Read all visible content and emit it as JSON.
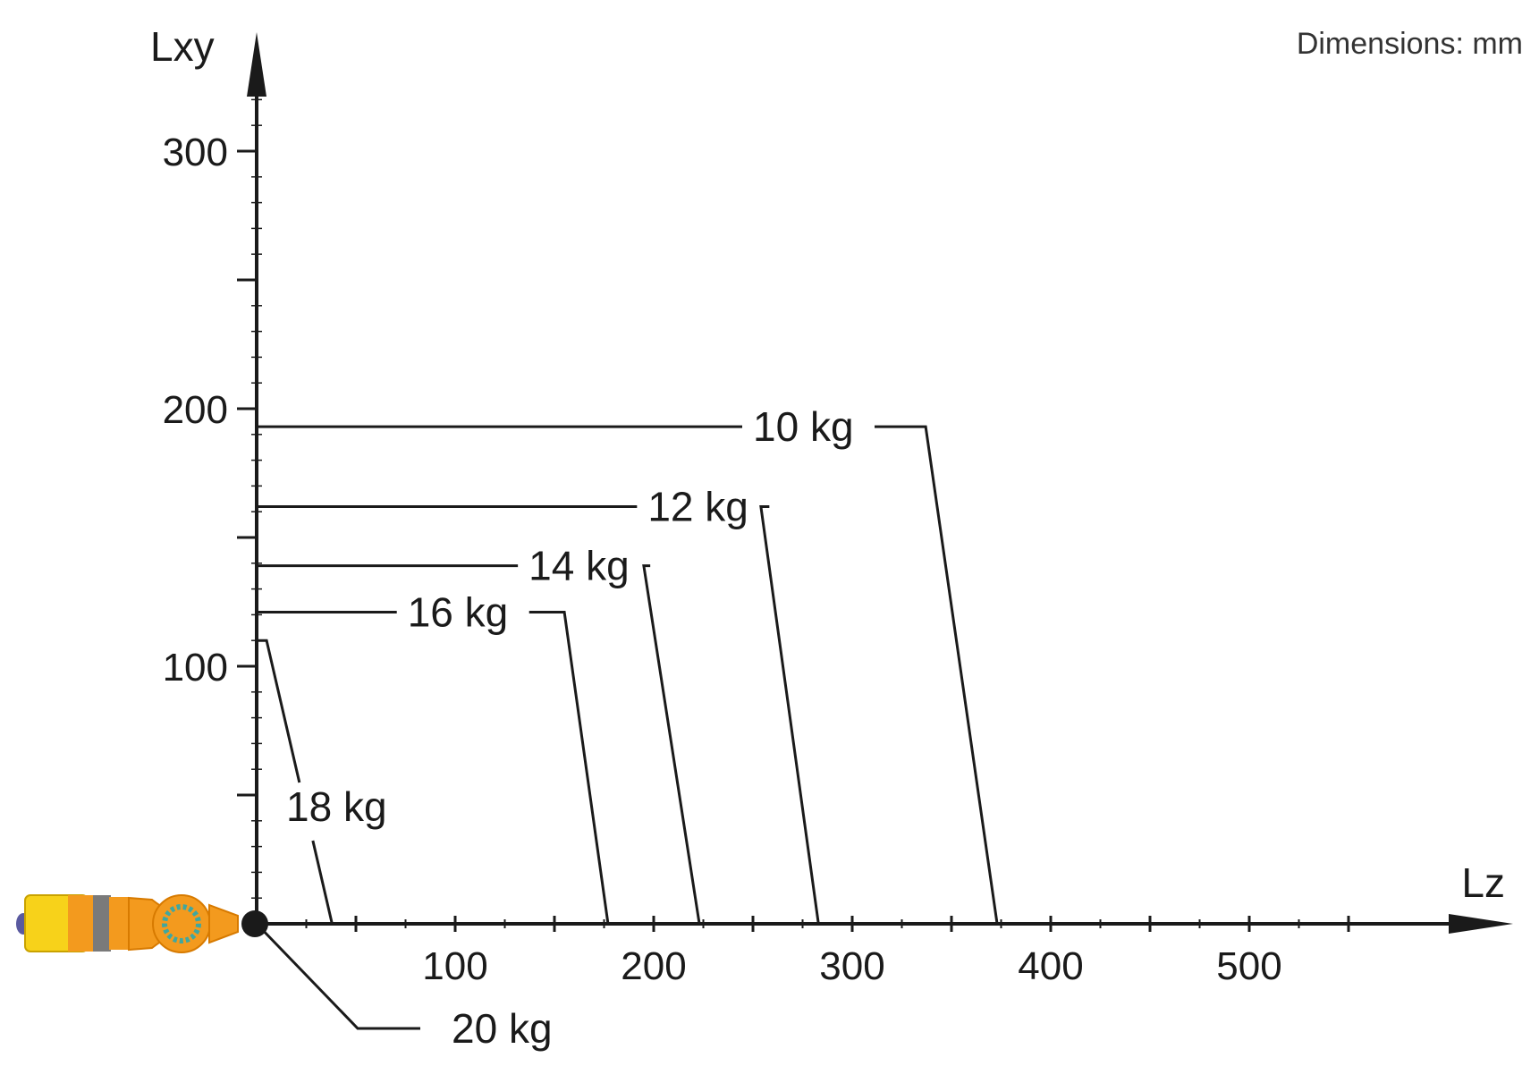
{
  "units_note": "Dimensions: mm",
  "chart_data": {
    "type": "line",
    "title": "",
    "xlabel": "Lz",
    "ylabel": "Lxy",
    "xlim": [
      0,
      600
    ],
    "ylim": [
      0,
      340
    ],
    "x_ticks": [
      100,
      200,
      300,
      400,
      500
    ],
    "y_ticks": [
      100,
      200,
      300
    ],
    "grid": false,
    "series": [
      {
        "name": "10 kg",
        "points": [
          [
            0,
            193
          ],
          [
            337,
            193
          ],
          [
            373,
            0
          ]
        ]
      },
      {
        "name": "12 kg",
        "points": [
          [
            0,
            162
          ],
          [
            254,
            162
          ],
          [
            283,
            0
          ]
        ]
      },
      {
        "name": "14 kg",
        "points": [
          [
            0,
            139
          ],
          [
            195,
            139
          ],
          [
            223,
            0
          ]
        ]
      },
      {
        "name": "16 kg",
        "points": [
          [
            0,
            121
          ],
          [
            155,
            121
          ],
          [
            177,
            0
          ]
        ]
      },
      {
        "name": "18 kg",
        "points": [
          [
            0,
            110
          ],
          [
            5,
            110
          ],
          [
            38,
            0
          ]
        ]
      },
      {
        "name": "20 kg",
        "points": [
          [
            0,
            0
          ],
          [
            50,
            -40
          ]
        ]
      }
    ]
  },
  "colors": {
    "axis": "#1a1a1a",
    "line": "#1a1a1a",
    "robot_orange": "#f39a1e",
    "robot_yellow": "#f7d21a",
    "robot_grey": "#7a7a7a",
    "robot_teal": "#3fa7a0"
  },
  "icons": {
    "robot_wrist": "robot-wrist-icon",
    "origin": "origin-dot-icon"
  }
}
